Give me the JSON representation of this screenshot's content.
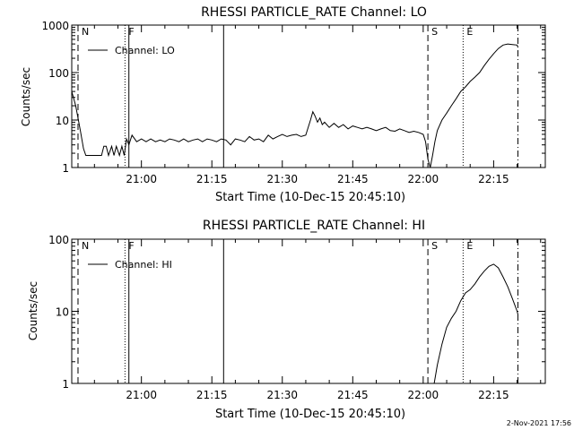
{
  "footer": {
    "timestamp": "2-Nov-2021 17:56"
  },
  "chart_data": [
    {
      "type": "line",
      "title": "RHESSI PARTICLE_RATE Channel: LO",
      "xlabel": "Start Time (10-Dec-15 20:45:10)",
      "ylabel": "Counts/sec",
      "y_scale": "log",
      "ylim": [
        1,
        1000
      ],
      "xlim": [
        "20:45:10",
        "22:26:00"
      ],
      "x_ticks": [
        "21:00",
        "21:15",
        "21:30",
        "21:45",
        "22:00",
        "22:15"
      ],
      "y_ticks": [
        "1",
        "10",
        "100",
        "1000"
      ],
      "legend": {
        "position": "top-left",
        "entries": [
          "Channel: LO"
        ]
      },
      "markers": [
        {
          "label": "N",
          "time": "20:46:30",
          "style": "dashed"
        },
        {
          "label": "F",
          "time": "20:56:30",
          "style": "dotted"
        },
        {
          "label": "",
          "time": "20:57:20",
          "style": "solid"
        },
        {
          "label": "",
          "time": "21:17:30",
          "style": "solid"
        },
        {
          "label": "S",
          "time": "22:01:00",
          "style": "dashed"
        },
        {
          "label": "E",
          "time": "22:08:30",
          "style": "dotted"
        },
        {
          "label": "",
          "time": "22:20:10",
          "style": "dashdot"
        }
      ],
      "series": [
        {
          "name": "Channel: LO",
          "x": [
            "20:45:10",
            "20:46:00",
            "20:47:00",
            "20:47:40",
            "20:48:10",
            "20:50:00",
            "20:51:30",
            "20:52:00",
            "20:52:30",
            "20:53:00",
            "20:53:40",
            "20:54:10",
            "20:54:40",
            "20:55:20",
            "20:55:50",
            "20:56:20",
            "20:56:50",
            "20:57:20",
            "20:58:00",
            "20:59:00",
            "21:00:00",
            "21:01:00",
            "21:02:00",
            "21:03:00",
            "21:04:00",
            "21:05:00",
            "21:06:00",
            "21:07:00",
            "21:08:00",
            "21:09:00",
            "21:10:00",
            "21:11:00",
            "21:12:00",
            "21:13:00",
            "21:14:00",
            "21:15:00",
            "21:16:00",
            "21:17:00",
            "21:18:00",
            "21:19:00",
            "21:20:00",
            "21:21:00",
            "21:22:00",
            "21:23:00",
            "21:24:00",
            "21:25:00",
            "21:26:00",
            "21:27:00",
            "21:28:00",
            "21:29:00",
            "21:30:00",
            "21:31:00",
            "21:32:00",
            "21:33:00",
            "21:34:00",
            "21:35:00",
            "21:36:00",
            "21:36:30",
            "21:37:00",
            "21:37:30",
            "21:38:00",
            "21:38:30",
            "21:39:00",
            "21:40:00",
            "21:41:00",
            "21:42:00",
            "21:43:00",
            "21:44:00",
            "21:45:00",
            "21:46:00",
            "21:47:00",
            "21:48:00",
            "21:49:00",
            "21:50:00",
            "21:51:00",
            "21:52:00",
            "21:53:00",
            "21:54:00",
            "21:55:00",
            "21:56:00",
            "21:57:00",
            "21:58:00",
            "21:59:00",
            "22:00:00",
            "22:00:30",
            "22:01:00",
            "22:01:30",
            "22:02:00",
            "22:02:30",
            "22:03:00",
            "22:04:00",
            "22:05:00",
            "22:06:00",
            "22:07:00",
            "22:08:00",
            "22:09:00",
            "22:10:00",
            "22:11:00",
            "22:12:00",
            "22:13:00",
            "22:14:00",
            "22:15:00",
            "22:16:00",
            "22:17:00",
            "22:18:00",
            "22:19:00",
            "22:20:00",
            "22:20:10"
          ],
          "y": [
            40,
            20,
            6,
            2.5,
            1.8,
            1.8,
            1.8,
            2.8,
            2.8,
            1.8,
            2.8,
            1.8,
            2.8,
            1.8,
            2.8,
            1.8,
            4,
            3,
            4.8,
            3.5,
            4,
            3.5,
            4,
            3.5,
            3.8,
            3.5,
            4,
            3.8,
            3.5,
            4,
            3.5,
            3.8,
            4,
            3.5,
            4,
            3.8,
            3.5,
            4,
            3.8,
            3,
            4,
            3.8,
            3.5,
            4.5,
            3.8,
            4,
            3.5,
            4.8,
            4,
            4.5,
            5,
            4.5,
            4.8,
            5,
            4.5,
            4.8,
            10,
            15,
            12,
            9,
            11,
            8,
            9,
            7,
            8.5,
            7,
            8,
            6.5,
            7.5,
            7,
            6.5,
            7,
            6.5,
            6,
            6.5,
            7,
            6,
            5.8,
            6.5,
            6,
            5.5,
            5.8,
            5.5,
            5,
            3.5,
            1.5,
            1,
            1.8,
            3.5,
            6,
            10,
            14,
            20,
            28,
            40,
            50,
            65,
            80,
            100,
            140,
            190,
            250,
            320,
            380,
            400,
            390,
            380,
            340
          ]
        }
      ]
    },
    {
      "type": "line",
      "title": "RHESSI PARTICLE_RATE Channel: HI",
      "xlabel": "Start Time (10-Dec-15 20:45:10)",
      "ylabel": "Counts/sec",
      "y_scale": "log",
      "ylim": [
        1,
        100
      ],
      "xlim": [
        "20:45:10",
        "22:26:00"
      ],
      "x_ticks": [
        "21:00",
        "21:15",
        "21:30",
        "21:45",
        "22:00",
        "22:15"
      ],
      "y_ticks": [
        "1",
        "10",
        "100"
      ],
      "legend": {
        "position": "top-left",
        "entries": [
          "Channel: HI"
        ]
      },
      "markers": [
        {
          "label": "N",
          "time": "20:46:30",
          "style": "dashed"
        },
        {
          "label": "F",
          "time": "20:56:30",
          "style": "dotted"
        },
        {
          "label": "",
          "time": "20:57:20",
          "style": "solid"
        },
        {
          "label": "",
          "time": "21:17:30",
          "style": "solid"
        },
        {
          "label": "S",
          "time": "22:01:00",
          "style": "dashed"
        },
        {
          "label": "E",
          "time": "22:08:30",
          "style": "dotted"
        },
        {
          "label": "",
          "time": "22:20:10",
          "style": "dashdot"
        }
      ],
      "series": [
        {
          "name": "Channel: HI",
          "x": [
            "22:02:20",
            "22:03:00",
            "22:04:00",
            "22:05:00",
            "22:06:00",
            "22:07:00",
            "22:08:00",
            "22:09:00",
            "22:10:00",
            "22:11:00",
            "22:12:00",
            "22:13:00",
            "22:14:00",
            "22:15:00",
            "22:16:00",
            "22:17:00",
            "22:18:00",
            "22:19:00",
            "22:20:00",
            "22:20:10"
          ],
          "y": [
            1,
            1.8,
            3.5,
            6,
            8,
            10,
            14,
            18,
            20,
            24,
            30,
            36,
            42,
            45,
            40,
            30,
            22,
            15,
            10,
            9
          ]
        }
      ]
    }
  ]
}
